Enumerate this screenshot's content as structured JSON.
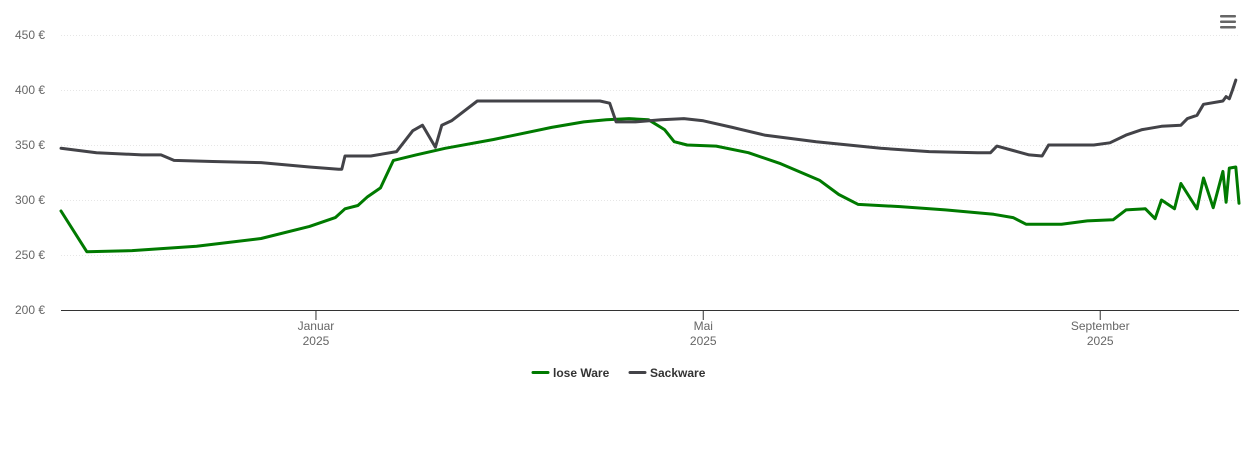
{
  "chart_data": {
    "type": "line",
    "title": "",
    "xlabel": "",
    "ylabel": "",
    "y_ticks": [
      "200 €",
      "250 €",
      "300 €",
      "350 €",
      "400 €",
      "450 €"
    ],
    "y_tick_values": [
      200,
      250,
      300,
      350,
      400,
      450
    ],
    "ylim": [
      200,
      450
    ],
    "x_tick_labels": [
      {
        "month": "Januar",
        "year": "2025",
        "date": "2025-01-01"
      },
      {
        "month": "Mai",
        "year": "2025",
        "date": "2025-05-01"
      },
      {
        "month": "September",
        "year": "2025",
        "date": "2025-09-01"
      }
    ],
    "xlim": [
      "2024-10-14",
      "2025-10-14"
    ],
    "grid": true,
    "legend_position": "bottom-center",
    "series": [
      {
        "name": "lose Ware",
        "color": "#007a00",
        "points": [
          [
            "2024-10-14",
            290
          ],
          [
            "2024-10-22",
            253
          ],
          [
            "2024-11-05",
            254
          ],
          [
            "2024-11-25",
            258
          ],
          [
            "2024-12-15",
            265
          ],
          [
            "2024-12-30",
            276
          ],
          [
            "2025-01-07",
            284
          ],
          [
            "2025-01-10",
            292
          ],
          [
            "2025-01-14",
            295
          ],
          [
            "2025-01-17",
            303
          ],
          [
            "2025-01-21",
            311
          ],
          [
            "2025-01-25",
            336
          ],
          [
            "2025-02-01",
            341
          ],
          [
            "2025-02-10",
            347
          ],
          [
            "2025-02-25",
            355
          ],
          [
            "2025-03-15",
            366
          ],
          [
            "2025-03-25",
            371
          ],
          [
            "2025-04-01",
            373
          ],
          [
            "2025-04-08",
            374
          ],
          [
            "2025-04-14",
            373
          ],
          [
            "2025-04-19",
            364
          ],
          [
            "2025-04-22",
            353
          ],
          [
            "2025-04-26",
            350
          ],
          [
            "2025-05-05",
            349
          ],
          [
            "2025-05-15",
            343
          ],
          [
            "2025-05-25",
            333
          ],
          [
            "2025-06-06",
            318
          ],
          [
            "2025-06-12",
            305
          ],
          [
            "2025-06-18",
            296
          ],
          [
            "2025-07-01",
            294
          ],
          [
            "2025-07-15",
            291
          ],
          [
            "2025-07-30",
            287
          ],
          [
            "2025-08-05",
            284
          ],
          [
            "2025-08-09",
            278
          ],
          [
            "2025-08-20",
            278
          ],
          [
            "2025-09-05",
            282
          ],
          [
            "2025-09-18",
            283
          ],
          [
            "2025-09-24",
            292
          ],
          [
            "2025-10-01",
            292
          ],
          [
            "2025-10-06",
            293
          ],
          [
            "2025-10-10",
            298
          ],
          [
            "2025-10-14",
            297
          ],
          [
            "2025-08-28",
            281
          ],
          [
            "2025-09-09",
            291
          ],
          [
            "2025-09-15",
            292
          ],
          [
            "2025-09-20",
            300
          ],
          [
            "2025-09-26",
            315
          ],
          [
            "2025-10-03",
            320
          ],
          [
            "2025-10-09",
            326
          ],
          [
            "2025-10-11",
            329
          ],
          [
            "2025-10-13",
            330
          ]
        ]
      },
      {
        "name": "Sackware",
        "color": "#434348",
        "points": [
          [
            "2024-10-14",
            347
          ],
          [
            "2024-10-25",
            343
          ],
          [
            "2024-11-08",
            341
          ],
          [
            "2024-11-14",
            341
          ],
          [
            "2024-11-18",
            336
          ],
          [
            "2024-11-30",
            335
          ],
          [
            "2024-12-15",
            334
          ],
          [
            "2024-12-30",
            330
          ],
          [
            "2025-01-08",
            328
          ],
          [
            "2025-01-09",
            328
          ],
          [
            "2025-01-10",
            340
          ],
          [
            "2025-01-18",
            340
          ],
          [
            "2025-01-26",
            344
          ],
          [
            "2025-01-31",
            363
          ],
          [
            "2025-02-03",
            368
          ],
          [
            "2025-02-07",
            348
          ],
          [
            "2025-02-09",
            368
          ],
          [
            "2025-02-12",
            372
          ],
          [
            "2025-02-20",
            390
          ],
          [
            "2025-03-10",
            390
          ],
          [
            "2025-03-30",
            390
          ],
          [
            "2025-04-02",
            388
          ],
          [
            "2025-04-04",
            371
          ],
          [
            "2025-04-10",
            371
          ],
          [
            "2025-04-18",
            373
          ],
          [
            "2025-04-25",
            374
          ],
          [
            "2025-05-01",
            372
          ],
          [
            "2025-05-10",
            366
          ],
          [
            "2025-05-20",
            359
          ],
          [
            "2025-06-05",
            353
          ],
          [
            "2025-06-25",
            347
          ],
          [
            "2025-07-10",
            344
          ],
          [
            "2025-07-25",
            343
          ],
          [
            "2025-07-29",
            343
          ],
          [
            "2025-07-31",
            349
          ],
          [
            "2025-08-05",
            345
          ],
          [
            "2025-08-10",
            341
          ],
          [
            "2025-08-14",
            340
          ],
          [
            "2025-08-16",
            350
          ],
          [
            "2025-08-30",
            350
          ],
          [
            "2025-09-04",
            352
          ],
          [
            "2025-09-09",
            359
          ],
          [
            "2025-09-14",
            364
          ],
          [
            "2025-09-20",
            367
          ],
          [
            "2025-09-26",
            368
          ],
          [
            "2025-09-28",
            374
          ],
          [
            "2025-10-01",
            377
          ],
          [
            "2025-10-03",
            387
          ],
          [
            "2025-10-09",
            390
          ],
          [
            "2025-10-10",
            394
          ],
          [
            "2025-10-11",
            392
          ],
          [
            "2025-10-12",
            400
          ],
          [
            "2025-10-13",
            409
          ]
        ]
      }
    ]
  },
  "menu": {
    "icon": "hamburger-menu-icon"
  }
}
